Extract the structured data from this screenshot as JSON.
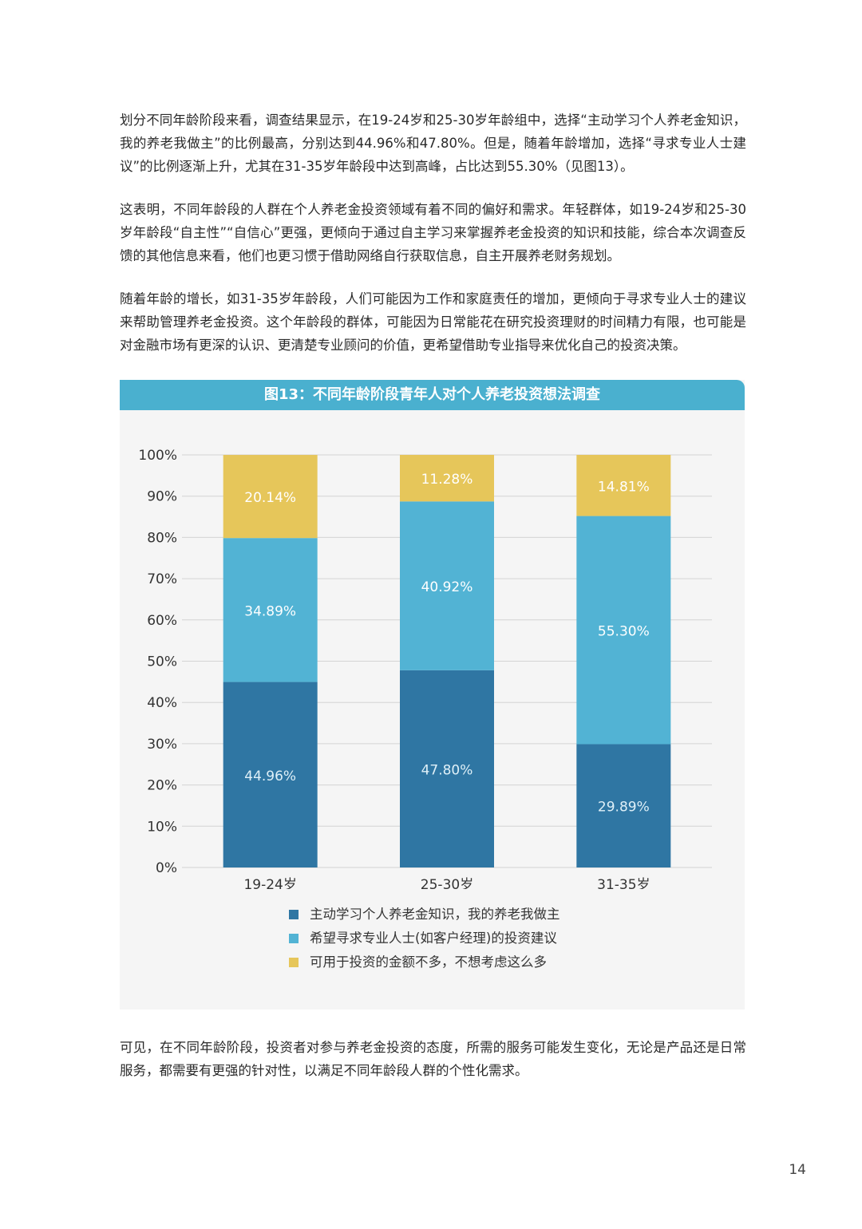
{
  "paragraphs": {
    "p1": "划分不同年龄阶段来看，调查结果显示，在19-24岁和25-30岁年龄组中，选择“主动学习个人养老金知识，我的养老我做主”的比例最高，分别达到44.96%和47.80%。但是，随着年龄增加，选择“寻求专业人士建议”的比例逐渐上升，尤其在31-35岁年龄段中达到高峰，占比达到55.30%（见图13）。",
    "p2": "这表明，不同年龄段的人群在个人养老金投资领域有着不同的偏好和需求。年轻群体，如19-24岁和25-30岁年龄段“自主性”“自信心”更强，更倾向于通过自主学习来掌握养老金投资的知识和技能，综合本次调查反馈的其他信息来看，他们也更习惯于借助网络自行获取信息，自主开展养老财务规划。",
    "p3": "随着年龄的增长，如31-35岁年龄段，人们可能因为工作和家庭责任的增加，更倾向于寻求专业人士的建议来帮助管理养老金投资。这个年龄段的群体，可能因为日常能花在研究投资理财的时间精力有限，也可能是对金融市场有更深的认识、更清楚专业顾问的价值，更希望借助专业指导来优化自己的投资决策。",
    "p4": "可见，在不同年龄阶段，投资者对参与养老金投资的态度，所需的服务可能发生变化，无论是产品还是日常服务，都需要有更强的针对性，以满足不同年龄段人群的个性化需求。"
  },
  "page_number": "14",
  "colors": {
    "series_1": "#2f76a3",
    "series_2": "#52b3d4",
    "series_3": "#e6c65a",
    "title_bar": "#4ab0cf",
    "panel_bg": "#f5f5f5"
  },
  "chart_data": {
    "type": "bar",
    "stacked": true,
    "title": "图13：不同年龄阶段青年人对个人养老投资想法调查",
    "categories": [
      "19-24岁",
      "25-30岁",
      "31-35岁"
    ],
    "y_ticks": [
      "0%",
      "10%",
      "20%",
      "30%",
      "40%",
      "50%",
      "60%",
      "70%",
      "80%",
      "90%",
      "100%"
    ],
    "ylim": [
      0,
      100
    ],
    "grid": true,
    "legend_position": "bottom",
    "series": [
      {
        "name": "主动学习个人养老金知识，我的养老我做主",
        "values": [
          44.96,
          47.8,
          29.89
        ],
        "labels": [
          "44.96%",
          "47.80%",
          "29.89%"
        ]
      },
      {
        "name": "希望寻求专业人士(如客户经理)的投资建议",
        "values": [
          34.89,
          40.92,
          55.3
        ],
        "labels": [
          "34.89%",
          "40.92%",
          "55.30%"
        ]
      },
      {
        "name": "可用于投资的金额不多，不想考虑这么多",
        "values": [
          20.14,
          11.28,
          14.81
        ],
        "labels": [
          "20.14%",
          "11.28%",
          "14.81%"
        ]
      }
    ]
  }
}
